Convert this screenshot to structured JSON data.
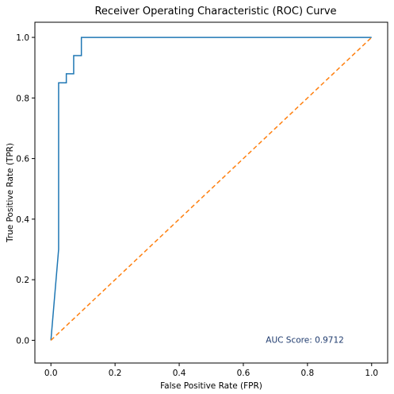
{
  "chart_data": {
    "type": "line",
    "title": "Receiver Operating Characteristic (ROC) Curve",
    "xlabel": "False Positive Rate (FPR)",
    "ylabel": "True Positive Rate (TPR)",
    "xlim": [
      -0.05,
      1.05
    ],
    "ylim": [
      -0.075,
      1.05
    ],
    "xticks": [
      0.0,
      0.2,
      0.4,
      0.6,
      0.8,
      1.0
    ],
    "yticks": [
      0.0,
      0.2,
      0.4,
      0.6,
      0.8,
      1.0
    ],
    "xtick_labels": [
      "0.0",
      "0.2",
      "0.4",
      "0.6",
      "0.8",
      "1.0"
    ],
    "ytick_labels": [
      "0.0",
      "0.2",
      "0.4",
      "0.6",
      "0.8",
      "1.0"
    ],
    "grid": false,
    "annotation": {
      "text": "AUC Score: 0.9712",
      "x": 0.67,
      "y": 0.0
    },
    "series": [
      {
        "color": "#1f77b4",
        "style": "solid",
        "x": [
          0.0,
          0.024,
          0.024,
          0.024,
          0.048,
          0.048,
          0.071,
          0.071,
          0.095,
          0.095,
          1.0
        ],
        "y": [
          0.0,
          0.3,
          0.85,
          0.85,
          0.85,
          0.88,
          0.88,
          0.94,
          0.94,
          1.0,
          1.0
        ]
      },
      {
        "color": "#ff7f0e",
        "style": "dashed",
        "x": [
          0.0,
          1.0
        ],
        "y": [
          0.0,
          1.0
        ]
      }
    ]
  }
}
